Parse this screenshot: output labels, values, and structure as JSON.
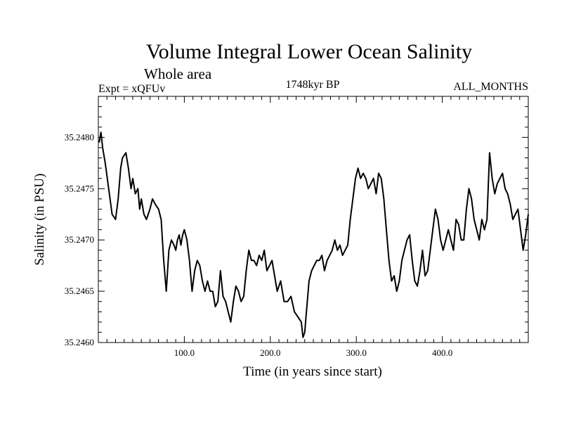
{
  "chart_data": {
    "type": "line",
    "title": "Volume Integral Lower Ocean Salinity",
    "subtitle": "Whole area",
    "header_left": "Expt = xQFUv",
    "header_center": "1748kyr BP",
    "header_right": "ALL_MONTHS",
    "xlabel": "Time (in years since start)",
    "ylabel": "Salinity (in PSU)",
    "xlim": [
      0,
      500
    ],
    "ylim": [
      35.246,
      35.2484
    ],
    "xticks": [
      100,
      200,
      300,
      400
    ],
    "xtick_labels": [
      "100.0",
      "200.0",
      "300.0",
      "400.0"
    ],
    "yticks": [
      35.246,
      35.2465,
      35.247,
      35.2475,
      35.248
    ],
    "ytick_labels": [
      "35.2460",
      "35.2465",
      "35.2470",
      "35.2475",
      "35.2480"
    ],
    "grid": false,
    "series": [
      {
        "name": "Salinity",
        "x": [
          1,
          3,
          5,
          8,
          12,
          16,
          20,
          23,
          26,
          28,
          32,
          35,
          38,
          40,
          43,
          46,
          48,
          50,
          53,
          56,
          60,
          63,
          66,
          70,
          73,
          76,
          79,
          82,
          85,
          88,
          90,
          92,
          94,
          96,
          98,
          100,
          103,
          106,
          109,
          112,
          115,
          118,
          121,
          124,
          127,
          130,
          133,
          136,
          139,
          142,
          145,
          148,
          151,
          154,
          157,
          160,
          163,
          166,
          169,
          172,
          175,
          178,
          181,
          184,
          187,
          190,
          193,
          196,
          199,
          202,
          205,
          208,
          212,
          216,
          220,
          224,
          228,
          232,
          236,
          238,
          240,
          242,
          245,
          248,
          251,
          254,
          257,
          260,
          263,
          266,
          269,
          272,
          275,
          278,
          281,
          284,
          287,
          290,
          293,
          296,
          299,
          302,
          305,
          308,
          311,
          314,
          317,
          320,
          323,
          326,
          329,
          332,
          335,
          338,
          341,
          344,
          347,
          350,
          353,
          356,
          359,
          362,
          365,
          368,
          371,
          374,
          377,
          380,
          383,
          386,
          389,
          392,
          395,
          398,
          401,
          404,
          407,
          410,
          413,
          416,
          419,
          422,
          425,
          428,
          431,
          434,
          437,
          440,
          443,
          446,
          449,
          452,
          455,
          458,
          461,
          464,
          467,
          470,
          473,
          476,
          479,
          482,
          485,
          488,
          491,
          494,
          497,
          500
        ],
        "y": [
          35.24795,
          35.24805,
          35.2479,
          35.24775,
          35.2475,
          35.24725,
          35.2472,
          35.2474,
          35.2477,
          35.2478,
          35.24785,
          35.2477,
          35.2475,
          35.2476,
          35.24745,
          35.2475,
          35.2473,
          35.2474,
          35.24725,
          35.2472,
          35.2473,
          35.2474,
          35.24735,
          35.2473,
          35.2472,
          35.2468,
          35.2465,
          35.2469,
          35.247,
          35.24695,
          35.2469,
          35.247,
          35.24705,
          35.24695,
          35.24705,
          35.2471,
          35.247,
          35.2468,
          35.2465,
          35.2467,
          35.2468,
          35.24675,
          35.2466,
          35.2465,
          35.2466,
          35.2465,
          35.2465,
          35.24635,
          35.2464,
          35.2467,
          35.24645,
          35.2464,
          35.2463,
          35.2462,
          35.2464,
          35.24655,
          35.2465,
          35.2464,
          35.24645,
          35.2467,
          35.2469,
          35.2468,
          35.2468,
          35.24675,
          35.24685,
          35.2468,
          35.2469,
          35.2467,
          35.24675,
          35.2468,
          35.24665,
          35.2465,
          35.2466,
          35.2464,
          35.2464,
          35.24645,
          35.2463,
          35.24625,
          35.2462,
          35.24605,
          35.2461,
          35.2463,
          35.2466,
          35.2467,
          35.24675,
          35.2468,
          35.2468,
          35.24685,
          35.2467,
          35.2468,
          35.24685,
          35.2469,
          35.247,
          35.2469,
          35.24695,
          35.24685,
          35.2469,
          35.24695,
          35.2472,
          35.2474,
          35.2476,
          35.2477,
          35.2476,
          35.24765,
          35.2476,
          35.2475,
          35.24755,
          35.2476,
          35.24745,
          35.24765,
          35.2476,
          35.2474,
          35.2471,
          35.2468,
          35.2466,
          35.24665,
          35.2465,
          35.2466,
          35.2468,
          35.2469,
          35.247,
          35.24705,
          35.2468,
          35.2466,
          35.24655,
          35.2467,
          35.2469,
          35.24665,
          35.2467,
          35.2469,
          35.2471,
          35.2473,
          35.2472,
          35.247,
          35.2469,
          35.247,
          35.2471,
          35.247,
          35.2469,
          35.2472,
          35.24715,
          35.247,
          35.247,
          35.2473,
          35.2475,
          35.2474,
          35.2472,
          35.2471,
          35.247,
          35.2472,
          35.2471,
          35.2472,
          35.24785,
          35.2476,
          35.24745,
          35.24755,
          35.2476,
          35.24765,
          35.2475,
          35.24745,
          35.24735,
          35.2472,
          35.24725,
          35.2473,
          35.2471,
          35.2469,
          35.24705,
          35.24725
        ]
      }
    ]
  }
}
